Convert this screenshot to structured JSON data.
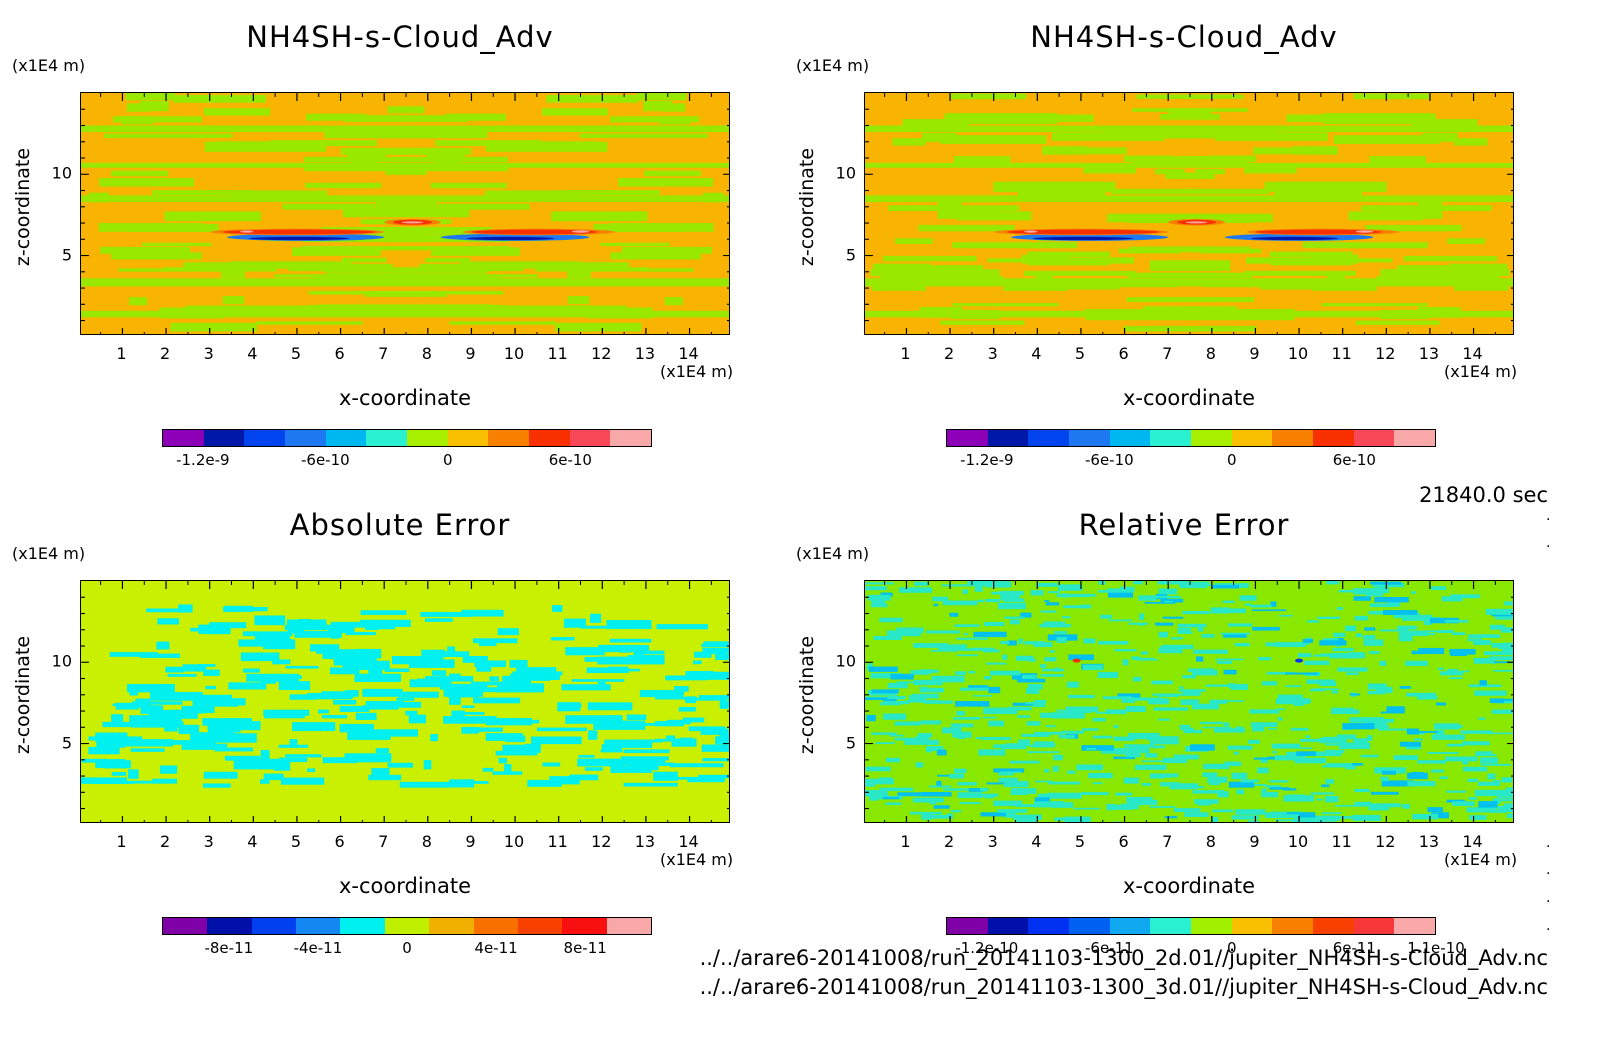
{
  "time_label": "21840.0 sec",
  "file_paths": [
    "../../arare6-20141008/run_20141103-1300_2d.01//jupiter_NH4SH-s-Cloud_Adv.nc",
    "../../arare6-20141008/run_20141103-1300_3d.01//jupiter_NH4SH-s-Cloud_Adv.nc"
  ],
  "chart_data": [
    {
      "type": "heatmap",
      "title": "NH4SH-s-Cloud_Adv",
      "xlabel": "x-coordinate",
      "ylabel": "z-coordinate",
      "x_unit": "(x1E4 m)",
      "y_unit": "(x1E4 m)",
      "xlim": [
        0.05,
        14.95
      ],
      "ylim": [
        0.05,
        15
      ],
      "x_ticks": [
        1,
        2,
        3,
        4,
        5,
        6,
        7,
        8,
        9,
        10,
        11,
        12,
        13,
        14
      ],
      "y_ticks": [
        5,
        10
      ],
      "colorbar_colors": [
        "#8b00b8",
        "#0018a8",
        "#0044f0",
        "#1e78f0",
        "#00b8f0",
        "#28f0d0",
        "#a8f000",
        "#f8c000",
        "#f88000",
        "#f83000",
        "#f84858",
        "#f8a8a8"
      ],
      "colorbar_ticks": [
        "-1.2e-9",
        "-6e-10",
        "0",
        "6e-10"
      ],
      "background_color": "#f8b400",
      "pattern_colors": [
        "#98e800"
      ],
      "features": "cloud layer near z=6, red above (positive) and blue below (negative)"
    },
    {
      "type": "heatmap",
      "title": "NH4SH-s-Cloud_Adv",
      "xlabel": "x-coordinate",
      "ylabel": "z-coordinate",
      "x_unit": "(x1E4 m)",
      "y_unit": "(x1E4 m)",
      "xlim": [
        0.05,
        14.95
      ],
      "ylim": [
        0.05,
        15
      ],
      "x_ticks": [
        1,
        2,
        3,
        4,
        5,
        6,
        7,
        8,
        9,
        10,
        11,
        12,
        13,
        14
      ],
      "y_ticks": [
        5,
        10
      ],
      "colorbar_colors": [
        "#8b00b8",
        "#0018a8",
        "#0044f0",
        "#1e78f0",
        "#00b8f0",
        "#28f0d0",
        "#a8f000",
        "#f8c000",
        "#f88000",
        "#f83000",
        "#f84858",
        "#f8a8a8"
      ],
      "colorbar_ticks": [
        "-1.2e-9",
        "-6e-10",
        "0",
        "6e-10"
      ],
      "background_color": "#f8b400",
      "pattern_colors": [
        "#98e800"
      ],
      "features": "cloud layer near z=6, red above (positive) and blue below (negative)"
    },
    {
      "type": "heatmap",
      "title": "Absolute Error",
      "xlabel": "x-coordinate",
      "ylabel": "z-coordinate",
      "x_unit": "(x1E4 m)",
      "y_unit": "(x1E4 m)",
      "xlim": [
        0.05,
        14.95
      ],
      "ylim": [
        0.05,
        15
      ],
      "x_ticks": [
        1,
        2,
        3,
        4,
        5,
        6,
        7,
        8,
        9,
        10,
        11,
        12,
        13,
        14
      ],
      "y_ticks": [
        5,
        10
      ],
      "colorbar_colors": [
        "#8000a8",
        "#0010a8",
        "#0040f0",
        "#1488f0",
        "#00f0f0",
        "#c0f000",
        "#f0b000",
        "#f87000",
        "#f84000",
        "#f81010",
        "#f8a8a8"
      ],
      "colorbar_ticks": [
        "-8e-11",
        "-4e-11",
        "0",
        "4e-11",
        "8e-11"
      ],
      "background_color": "#c8f000",
      "pattern_colors": [
        "#00f0f0"
      ],
      "features": "cyan streaks between z=2 and z=13"
    },
    {
      "type": "heatmap",
      "title": "Relative Error",
      "xlabel": "x-coordinate",
      "ylabel": "z-coordinate",
      "x_unit": "(x1E4 m)",
      "y_unit": "(x1E4 m)",
      "xlim": [
        0.05,
        14.95
      ],
      "ylim": [
        0.05,
        15
      ],
      "x_ticks": [
        1,
        2,
        3,
        4,
        5,
        6,
        7,
        8,
        9,
        10,
        11,
        12,
        13,
        14
      ],
      "y_ticks": [
        5,
        10
      ],
      "colorbar_colors": [
        "#8000a8",
        "#0010a8",
        "#0030f0",
        "#0060f0",
        "#10a8f0",
        "#28f0d0",
        "#a0f000",
        "#f8c000",
        "#f88000",
        "#f84000",
        "#f83838",
        "#f8a8a8"
      ],
      "colorbar_ticks": [
        "-1.2e-10",
        "-6e-11",
        "0",
        "6e-11",
        "1.1e-10"
      ],
      "background_color": "#88e800",
      "pattern_colors": [
        "#28e8c8",
        "#00c0f0"
      ],
      "features": "mixed cyan and green small-scale noise over whole domain"
    }
  ]
}
